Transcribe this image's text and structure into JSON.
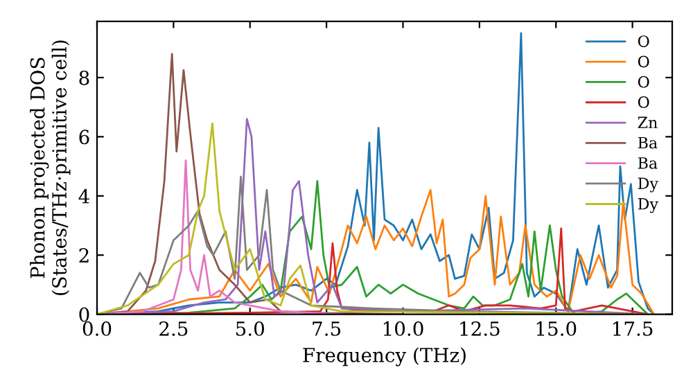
{
  "chart_data": {
    "type": "line",
    "xlabel": "Frequency (THz)",
    "ylabel": "Phonon projected DOS\n(States/THz·primitive cell)",
    "xlim": [
      0,
      18.8
    ],
    "ylim": [
      0,
      9.9
    ],
    "xticks": [
      {
        "value": 0,
        "label": "0.0"
      },
      {
        "value": 2.5,
        "label": "2.5"
      },
      {
        "value": 5,
        "label": "5.0"
      },
      {
        "value": 7.5,
        "label": "7.5"
      },
      {
        "value": 10,
        "label": "10.0"
      },
      {
        "value": 12.5,
        "label": "12.5"
      },
      {
        "value": 15,
        "label": "15.0"
      },
      {
        "value": 17.5,
        "label": "17.5"
      }
    ],
    "yticks": [
      0,
      2,
      4,
      6,
      8
    ],
    "grid": false,
    "legend": "top right",
    "series": [
      {
        "name": "O",
        "color": "#1f77b4",
        "x": [
          0,
          2,
          3,
          4,
          5,
          5.5,
          6,
          6.5,
          7,
          7.5,
          7.8,
          8.2,
          8.5,
          8.75,
          8.9,
          9.05,
          9.2,
          9.4,
          9.7,
          10.0,
          10.3,
          10.6,
          10.9,
          11.2,
          11.5,
          11.7,
          12.0,
          12.25,
          12.5,
          12.8,
          13.0,
          13.3,
          13.6,
          13.86,
          14.05,
          14.3,
          14.6,
          15.0,
          15.4,
          15.7,
          16.0,
          16.4,
          16.7,
          17.0,
          17.1,
          17.25,
          17.45,
          17.7,
          18.0,
          18.2
        ],
        "values": [
          0,
          0.1,
          0.3,
          0.4,
          0.4,
          0.6,
          0.9,
          1.0,
          0.8,
          1.2,
          1.0,
          2.3,
          4.2,
          3.0,
          5.8,
          2.5,
          6.3,
          3.2,
          3.0,
          2.5,
          3.2,
          2.2,
          2.7,
          1.8,
          2.0,
          1.2,
          1.3,
          2.7,
          2.2,
          3.6,
          1.2,
          1.4,
          2.5,
          9.5,
          1.4,
          0.6,
          0.9,
          0.7,
          0.1,
          2.2,
          1.0,
          3.0,
          0.9,
          1.5,
          5.0,
          3.2,
          4.4,
          1.1,
          0.2,
          0
        ]
      },
      {
        "name": "O",
        "color": "#ff7f0e",
        "x": [
          0,
          2,
          3,
          4,
          4.5,
          5,
          5.6,
          6,
          6.5,
          7.0,
          7.2,
          7.6,
          8.0,
          8.2,
          8.5,
          8.8,
          9.1,
          9.4,
          9.7,
          10.0,
          10.3,
          10.6,
          10.9,
          11.1,
          11.3,
          11.5,
          11.7,
          12.0,
          12.2,
          12.5,
          12.7,
          13.0,
          13.2,
          13.5,
          13.8,
          14.0,
          14.3,
          14.7,
          15.0,
          15.4,
          15.8,
          16.1,
          16.4,
          16.8,
          17.0,
          17.2,
          17.5,
          17.8,
          18.2
        ],
        "values": [
          0,
          0.2,
          0.5,
          0.6,
          1.5,
          0.8,
          1.7,
          0.6,
          1.2,
          0.4,
          1.6,
          0.7,
          2.2,
          3.0,
          2.4,
          3.3,
          2.2,
          3.0,
          2.5,
          2.9,
          2.3,
          3.3,
          4.2,
          2.4,
          3.2,
          0.6,
          0.7,
          1.0,
          1.9,
          2.2,
          4.0,
          1.0,
          3.3,
          1.0,
          1.4,
          3.0,
          1.0,
          0.6,
          0.8,
          0.1,
          2.0,
          1.2,
          2.0,
          0.9,
          1.3,
          3.8,
          1.0,
          0.7,
          0
        ]
      },
      {
        "name": "O",
        "color": "#2ca02c",
        "x": [
          0,
          3,
          4.5,
          5.0,
          5.4,
          5.7,
          6.0,
          6.3,
          6.7,
          7.0,
          7.2,
          7.4,
          7.6,
          8.0,
          8.5,
          8.8,
          9.2,
          9.6,
          10.0,
          10.5,
          11.0,
          11.5,
          12.0,
          12.3,
          12.6,
          13.0,
          13.5,
          13.9,
          14.1,
          14.3,
          14.5,
          14.8,
          15.0,
          15.2,
          15.6,
          16.5,
          17.0,
          17.3,
          17.6,
          18.0
        ],
        "values": [
          0,
          0.05,
          0.2,
          0.6,
          1.0,
          0.5,
          0.8,
          2.8,
          3.3,
          2.2,
          4.5,
          2.0,
          0.9,
          1.0,
          1.6,
          0.6,
          1.0,
          0.7,
          1.0,
          0.7,
          0.5,
          0.3,
          0.2,
          0.6,
          0.3,
          0.3,
          0.5,
          1.7,
          0.6,
          2.8,
          0.8,
          3.0,
          1.5,
          0.6,
          0,
          0.1,
          0.5,
          0.7,
          0.4,
          0
        ]
      },
      {
        "name": "O",
        "color": "#d62728",
        "x": [
          0,
          5,
          7.3,
          7.55,
          7.7,
          7.85,
          8.0,
          9.0,
          11.0,
          11.5,
          12.0,
          12.7,
          13.5,
          14.5,
          15.0,
          15.17,
          15.3,
          15.6,
          16.5,
          17.5,
          18.0
        ],
        "values": [
          0,
          0.05,
          0.1,
          0.5,
          2.4,
          0.8,
          0.2,
          0.1,
          0.1,
          0.3,
          0.1,
          0.3,
          0.3,
          0.2,
          0.3,
          2.9,
          0.2,
          0.1,
          0.3,
          0.1,
          0
        ]
      },
      {
        "name": "Zn",
        "color": "#9467bd",
        "x": [
          0,
          2.5,
          3.5,
          4.2,
          4.6,
          4.9,
          5.05,
          5.3,
          5.5,
          5.8,
          6.1,
          6.4,
          6.6,
          6.9,
          7.2,
          7.7,
          8.0,
          10.0,
          14.0,
          16.0,
          18.0
        ],
        "values": [
          0,
          0.1,
          0.4,
          0.5,
          1.0,
          6.6,
          6.0,
          1.5,
          2.8,
          0.6,
          0.8,
          4.2,
          4.5,
          2.0,
          0.4,
          1.0,
          0.2,
          0.1,
          0.2,
          0.1,
          0
        ]
      },
      {
        "name": "Ba",
        "color": "#8c564b",
        "x": [
          0,
          1.0,
          1.6,
          1.9,
          2.2,
          2.45,
          2.6,
          2.83,
          3.05,
          3.35,
          3.6,
          4.0,
          4.5,
          5.0,
          5.6,
          6.0,
          7.0,
          10.0
        ],
        "values": [
          0,
          0.1,
          0.8,
          1.8,
          4.5,
          8.8,
          5.5,
          8.25,
          6.1,
          3.4,
          2.5,
          1.5,
          1.0,
          0.4,
          0.5,
          0.1,
          0.05,
          0
        ]
      },
      {
        "name": "Ba",
        "color": "#e377c2",
        "x": [
          0,
          1.5,
          2.5,
          2.75,
          2.9,
          3.05,
          3.3,
          3.5,
          3.7,
          4.0,
          4.5,
          5.0,
          6.0,
          8.0
        ],
        "values": [
          0,
          0.1,
          0.5,
          1.5,
          5.2,
          1.5,
          0.8,
          2.0,
          0.6,
          0.8,
          0.4,
          0.3,
          0.1,
          0
        ]
      },
      {
        "name": "Dy",
        "color": "#7f7f7f",
        "x": [
          0,
          0.8,
          1.4,
          1.7,
          2.0,
          2.5,
          3.0,
          3.3,
          3.6,
          3.8,
          4.2,
          4.5,
          4.7,
          4.9,
          5.3,
          5.55,
          5.75,
          6.0,
          7.0,
          9.0,
          12.0,
          18.0
        ],
        "values": [
          0,
          0.2,
          1.4,
          0.9,
          1.0,
          2.5,
          3.0,
          3.5,
          2.3,
          2.0,
          2.8,
          1.2,
          4.65,
          1.5,
          2.0,
          4.2,
          1.5,
          0.8,
          0.3,
          0.2,
          0.1,
          0
        ]
      },
      {
        "name": "Dy",
        "color": "#bcbd22",
        "x": [
          0,
          1.0,
          2.0,
          2.5,
          3.0,
          3.3,
          3.5,
          3.77,
          4.0,
          4.5,
          5.0,
          5.5,
          6.0,
          6.3,
          6.65,
          7.0,
          8.0,
          18.0
        ],
        "values": [
          0,
          0.3,
          1.0,
          1.7,
          2.0,
          3.5,
          4.0,
          6.45,
          3.5,
          1.5,
          2.2,
          0.5,
          0.3,
          1.2,
          1.65,
          0.3,
          0.1,
          0
        ]
      }
    ]
  }
}
